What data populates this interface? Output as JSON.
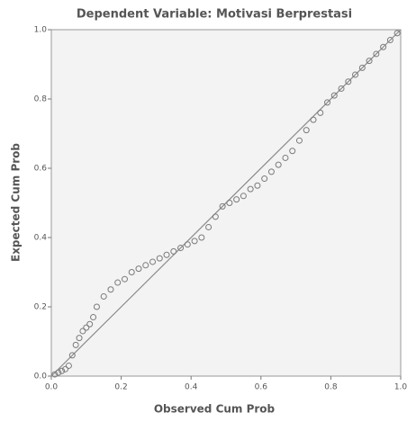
{
  "chart_data": {
    "type": "scatter",
    "title": "Dependent Variable: Motivasi Berprestasi",
    "x_label": "Observed Cum Prob",
    "y_label": "Expected Cum Prob",
    "color": "#7a7a7a",
    "line_color": "#8a8a8a",
    "x": [
      0.01,
      0.02,
      0.03,
      0.04,
      0.05,
      0.06,
      0.07,
      0.08,
      0.09,
      0.1,
      0.11,
      0.12,
      0.13,
      0.15,
      0.17,
      0.19,
      0.21,
      0.23,
      0.25,
      0.27,
      0.29,
      0.31,
      0.33,
      0.35,
      0.37,
      0.39,
      0.41,
      0.43,
      0.45,
      0.47,
      0.49,
      0.51,
      0.53,
      0.55,
      0.57,
      0.59,
      0.61,
      0.63,
      0.65,
      0.67,
      0.69,
      0.71,
      0.73,
      0.75,
      0.77,
      0.79,
      0.81,
      0.83,
      0.85,
      0.87,
      0.89,
      0.91,
      0.93,
      0.95,
      0.97,
      0.99
    ],
    "values": [
      0.005,
      0.01,
      0.015,
      0.02,
      0.03,
      0.06,
      0.09,
      0.11,
      0.13,
      0.14,
      0.15,
      0.17,
      0.2,
      0.23,
      0.25,
      0.27,
      0.28,
      0.3,
      0.31,
      0.32,
      0.33,
      0.34,
      0.35,
      0.36,
      0.37,
      0.38,
      0.39,
      0.4,
      0.43,
      0.46,
      0.49,
      0.5,
      0.51,
      0.52,
      0.54,
      0.55,
      0.57,
      0.59,
      0.61,
      0.63,
      0.65,
      0.68,
      0.71,
      0.74,
      0.76,
      0.79,
      0.81,
      0.83,
      0.85,
      0.87,
      0.89,
      0.91,
      0.93,
      0.95,
      0.97,
      0.99
    ],
    "xlim": [
      0,
      1
    ],
    "ylim": [
      0,
      1
    ],
    "xticks": [
      {
        "value": 0,
        "label": "0.0"
      },
      0.2,
      0.4,
      0.6,
      0.8,
      {
        "value": 1,
        "label": "1.0"
      }
    ],
    "yticks": [
      {
        "value": 0,
        "label": "0.0"
      },
      0.2,
      0.4,
      0.6,
      0.8,
      {
        "value": 1,
        "label": "1.0"
      }
    ]
  }
}
